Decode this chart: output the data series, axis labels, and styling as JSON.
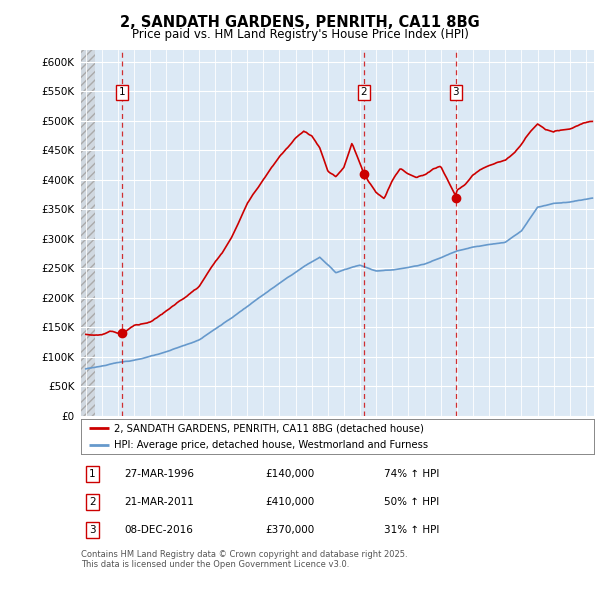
{
  "title1": "2, SANDATH GARDENS, PENRITH, CA11 8BG",
  "title2": "Price paid vs. HM Land Registry's House Price Index (HPI)",
  "ylim": [
    0,
    620000
  ],
  "yticks": [
    0,
    50000,
    100000,
    150000,
    200000,
    250000,
    300000,
    350000,
    400000,
    450000,
    500000,
    550000,
    600000
  ],
  "xlim_start": 1993.7,
  "xlim_end": 2025.5,
  "sale_dates": [
    1996.23,
    2011.22,
    2016.92
  ],
  "sale_prices": [
    140000,
    410000,
    370000
  ],
  "sale_labels": [
    "1",
    "2",
    "3"
  ],
  "legend_label_red": "2, SANDATH GARDENS, PENRITH, CA11 8BG (detached house)",
  "legend_label_blue": "HPI: Average price, detached house, Westmorland and Furness",
  "table_data": [
    {
      "label": "1",
      "date": "27-MAR-1996",
      "price": "£140,000",
      "hpi": "74% ↑ HPI"
    },
    {
      "label": "2",
      "date": "21-MAR-2011",
      "price": "£410,000",
      "hpi": "50% ↑ HPI"
    },
    {
      "label": "3",
      "date": "08-DEC-2016",
      "price": "£370,000",
      "hpi": "31% ↑ HPI"
    }
  ],
  "footer": "Contains HM Land Registry data © Crown copyright and database right 2025.\nThis data is licensed under the Open Government Licence v3.0.",
  "bg_color": "#dce9f5",
  "grid_color": "#ffffff",
  "red_color": "#cc0000",
  "blue_color": "#6699cc",
  "hatch_end": 1994.58
}
